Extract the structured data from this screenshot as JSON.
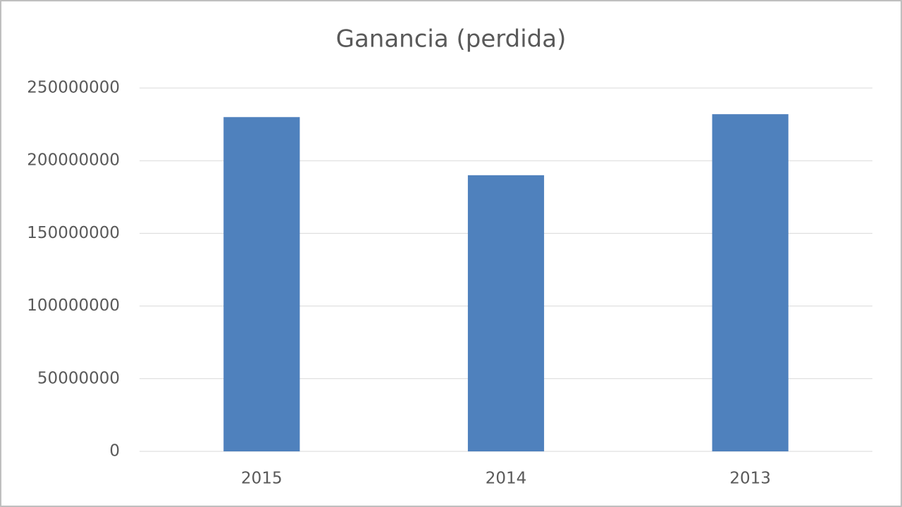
{
  "chart_data": {
    "type": "bar",
    "title": "Ganancia (perdida)",
    "categories": [
      "2015",
      "2014",
      "2013"
    ],
    "values": [
      230000000,
      190000000,
      232000000
    ],
    "color": "#4f81bd",
    "ylim": [
      0,
      250000000
    ],
    "yticks": [
      0,
      50000000,
      100000000,
      150000000,
      200000000,
      250000000
    ],
    "grid": true
  }
}
